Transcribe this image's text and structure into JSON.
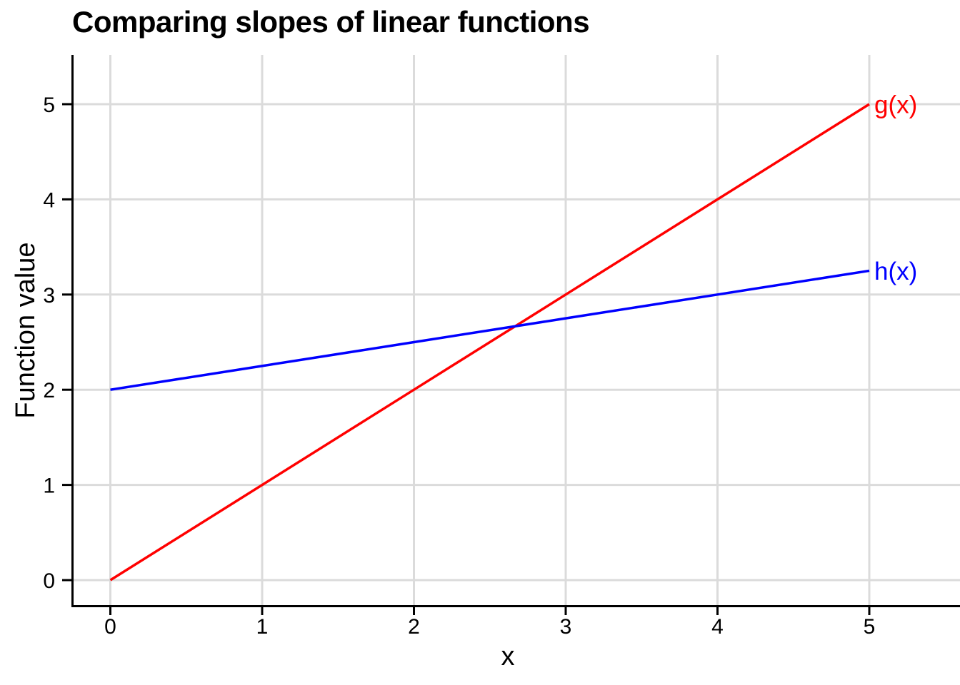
{
  "title": "Comparing slopes of linear functions",
  "chart_data": {
    "type": "line",
    "title": "Comparing slopes of linear functions",
    "xlabel": "x",
    "ylabel": "Function value",
    "x_ticks": [
      0,
      1,
      2,
      3,
      4,
      5
    ],
    "y_ticks": [
      0,
      1,
      2,
      3,
      4,
      5
    ],
    "xlim": [
      -0.25,
      5.6
    ],
    "ylim": [
      -0.27,
      5.52
    ],
    "grid": true,
    "legend_position": "line-end-labels",
    "background_color": "#ffffff",
    "gridline_color": "#dbdbdb",
    "axis_color": "#000000",
    "series": [
      {
        "name": "g(x)",
        "label": "g(x)",
        "color": "#ff0000",
        "slope": 1,
        "intercept": 0,
        "x": [
          0,
          1,
          2,
          3,
          4,
          5
        ],
        "values": [
          0,
          1,
          2,
          3,
          4,
          5
        ]
      },
      {
        "name": "h(x)",
        "label": "h(x)",
        "color": "#0000ff",
        "slope": 0.25,
        "intercept": 2,
        "x": [
          0,
          1,
          2,
          3,
          4,
          5
        ],
        "values": [
          2,
          2.25,
          2.5,
          2.75,
          3,
          3.25
        ]
      }
    ]
  }
}
